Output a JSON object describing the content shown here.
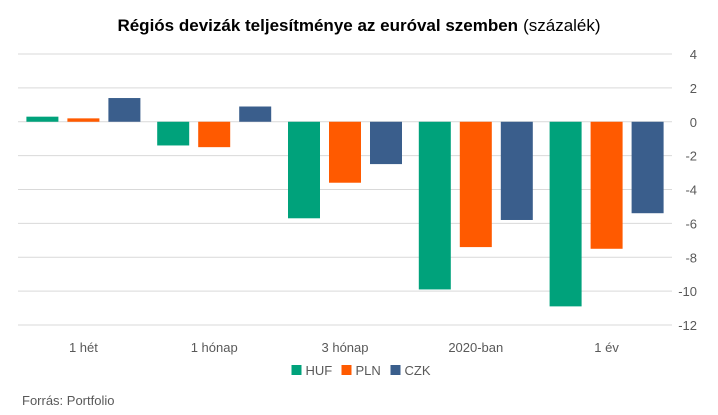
{
  "chart_data": {
    "type": "bar",
    "title": "Régiós devizák teljesítménye az euróval szemben",
    "title_suffix": "(százalék)",
    "categories": [
      "1 hét",
      "1 hónap",
      "3 hónap",
      "2020-ban",
      "1 év"
    ],
    "series": [
      {
        "name": "HUF",
        "color": "#00A27B",
        "values": [
          0.3,
          -1.4,
          -5.7,
          -9.9,
          -10.9
        ]
      },
      {
        "name": "PLN",
        "color": "#FF5A00",
        "values": [
          0.2,
          -1.5,
          -3.6,
          -7.4,
          -7.5
        ]
      },
      {
        "name": "CZK",
        "color": "#3A5E8C",
        "values": [
          1.4,
          0.9,
          -2.5,
          -5.8,
          -5.4
        ]
      }
    ],
    "ylim": [
      -12,
      4
    ],
    "yticks": [
      4,
      2,
      0,
      -2,
      -4,
      -6,
      -8,
      -10,
      -12
    ],
    "y_axis_position": "right",
    "grid": true,
    "legend_position": "bottom",
    "xlabel": "",
    "ylabel": ""
  },
  "source": "Forrás: Portfolio"
}
